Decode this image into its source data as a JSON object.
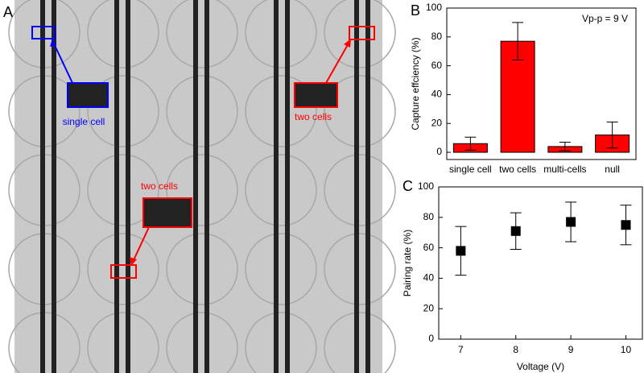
{
  "micrograph": {
    "panel": "A",
    "annotations": [
      "single cell",
      "two cells",
      "two cells"
    ]
  },
  "chart_data": [
    {
      "type": "bar",
      "panel": "B",
      "annotation": "Vp-p = 9 V",
      "ylabel": "Capture effciency (%)",
      "categories": [
        "single cell",
        "two cells",
        "multi-cells",
        "null"
      ],
      "values": [
        6,
        77,
        4,
        12
      ],
      "errors": [
        4.5,
        13,
        3,
        9
      ],
      "color": "#ff0000",
      "ylim": [
        -5,
        100
      ],
      "yticks": [
        0,
        20,
        40,
        60,
        80,
        100
      ]
    },
    {
      "type": "scatter",
      "panel": "C",
      "xlabel": "Voltage (V)",
      "ylabel": "Pairing rate   (%)",
      "x": [
        7,
        8,
        9,
        10
      ],
      "values": [
        58,
        71,
        77,
        75
      ],
      "errors": [
        16,
        12,
        13,
        13
      ],
      "color": "#000000",
      "xlim": [
        6.6,
        10.3
      ],
      "xticks": [
        7,
        8,
        9,
        10
      ],
      "ylim": [
        0,
        100
      ],
      "yticks": [
        0,
        20,
        40,
        60,
        80,
        100
      ]
    }
  ]
}
